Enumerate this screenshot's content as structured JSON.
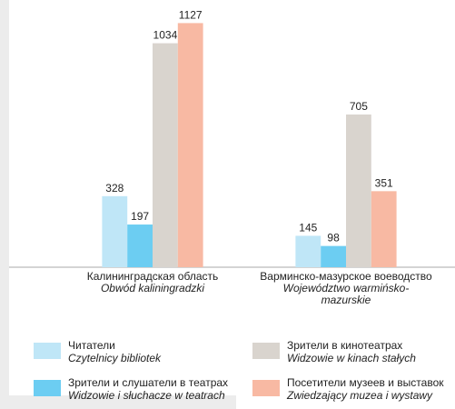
{
  "chart_data": {
    "type": "bar",
    "categories": [
      "Калининградская область",
      "Варминско-мазурское воеводство"
    ],
    "category_subtitles": [
      "Obwód kaliningradzki",
      "Województwo warmińsko-mazurskie"
    ],
    "series": [
      {
        "name": "Читатели",
        "subtitle": "Czytelnicy bibliotek",
        "color": "#bfe6f7",
        "values": [
          328,
          145
        ]
      },
      {
        "name": "Зрители и слушатели в театрах",
        "subtitle": "Widzowie i słuchacze w teatrach",
        "color": "#6ccdf2",
        "values": [
          197,
          98
        ]
      },
      {
        "name": "Зрители в кинотеатрах",
        "subtitle": "Widzowie w kinach stałych",
        "color": "#d9d4ce",
        "values": [
          1034,
          705
        ]
      },
      {
        "name": "Посетители музеев и выставок",
        "subtitle": "Zwiedzający muzea i wystawy",
        "color": "#f8b9a3",
        "values": [
          1127,
          351
        ]
      }
    ],
    "ylim": [
      0,
      1200
    ]
  }
}
